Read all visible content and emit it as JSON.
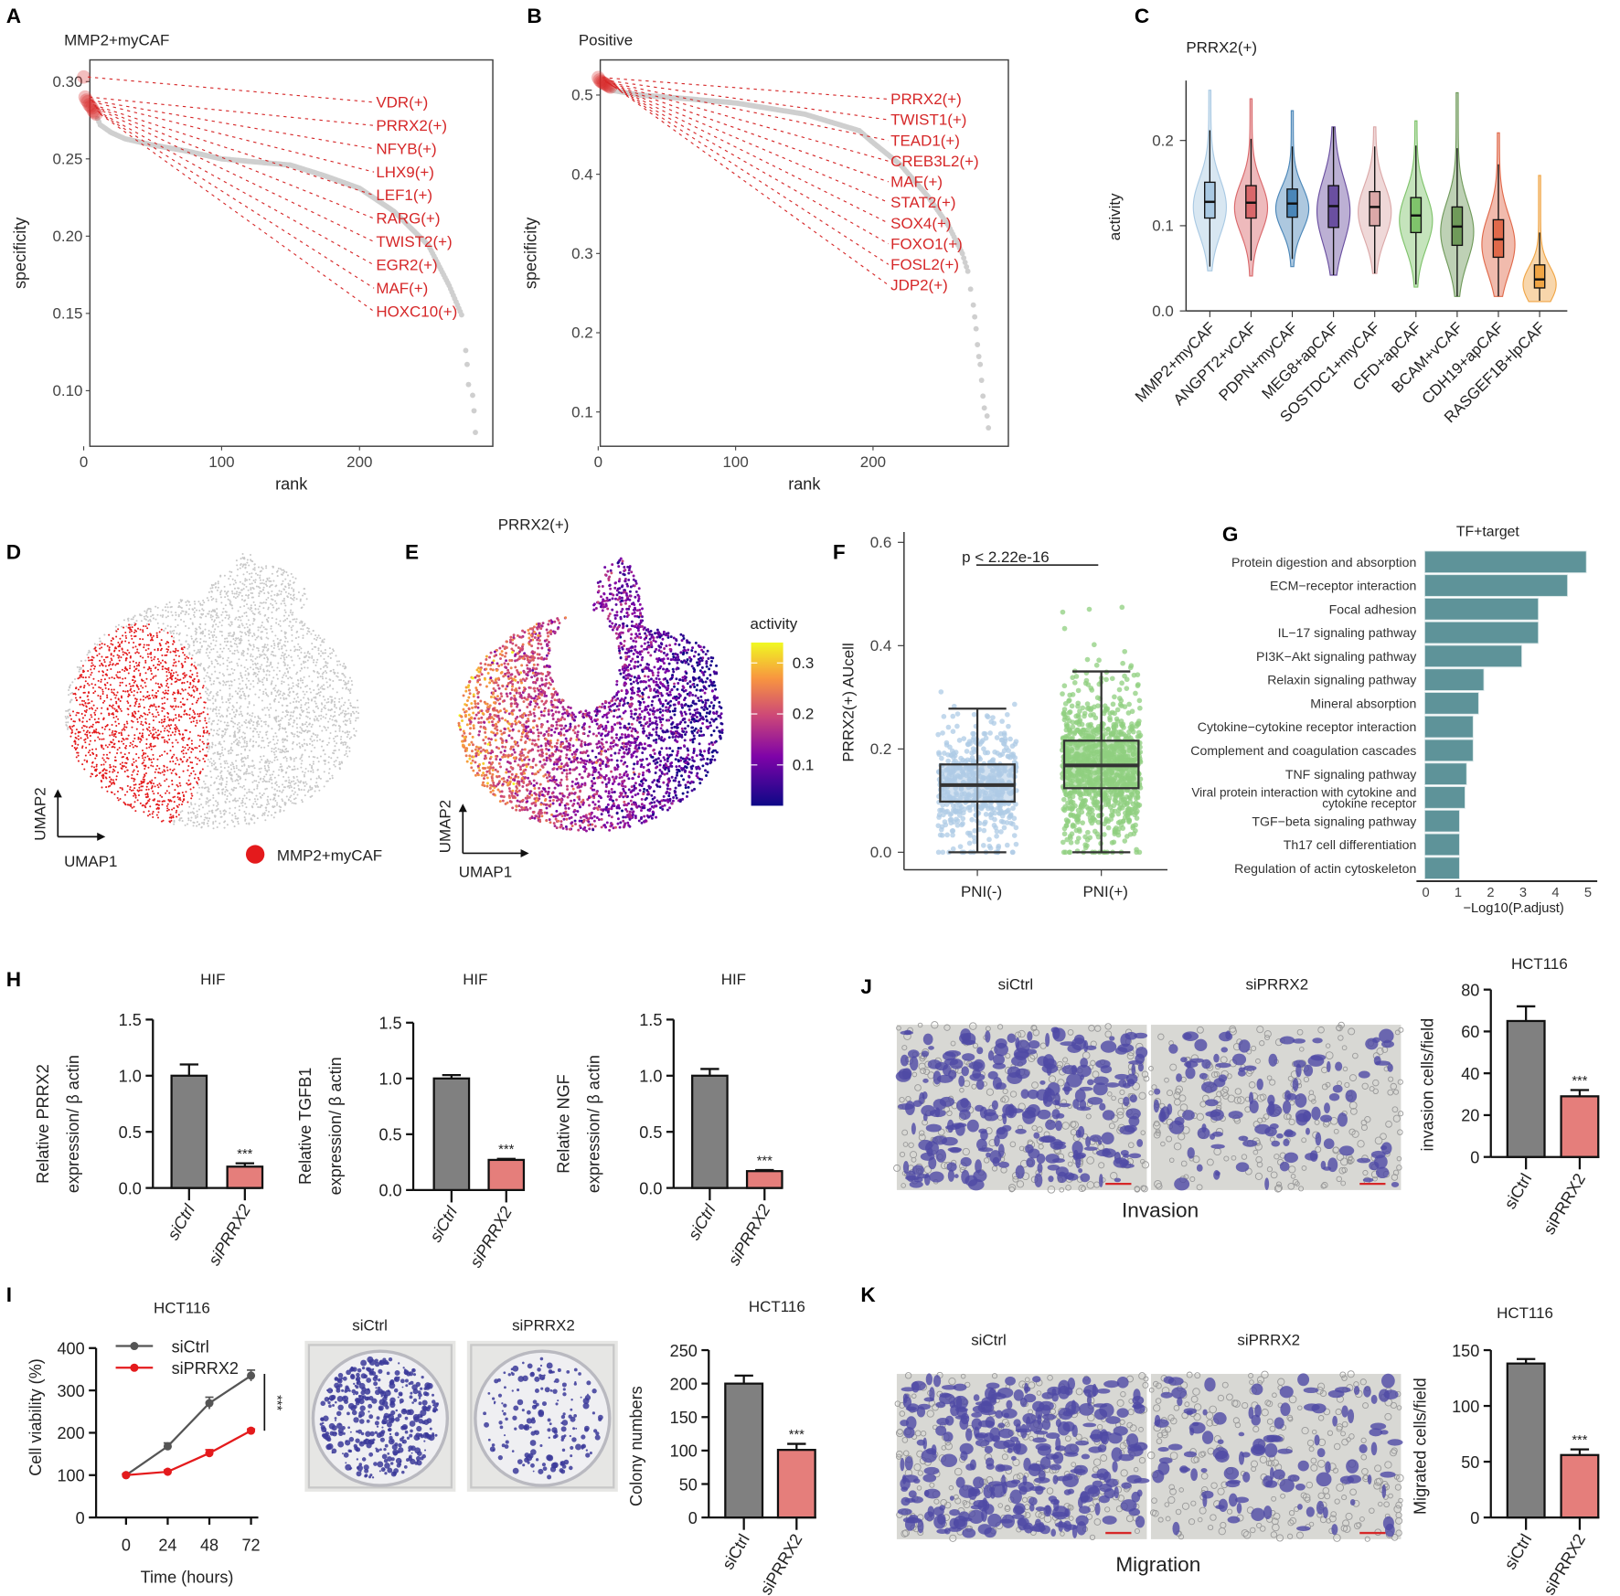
{
  "chart_data": [
    {
      "panel": "A",
      "type": "scatter",
      "title": "MMP2+myCAF",
      "xlabel": "rank",
      "ylabel": "specificity",
      "xticks": [
        "0",
        "100",
        "200"
      ],
      "yticks": [
        "0.10",
        "0.15",
        "0.20",
        "0.25",
        "0.30"
      ],
      "highlighted": [
        [
          0,
          0.303
        ],
        [
          1,
          0.29
        ],
        [
          2,
          0.288
        ],
        [
          3,
          0.287
        ],
        [
          4,
          0.285
        ],
        [
          5,
          0.284
        ],
        [
          6,
          0.283
        ],
        [
          7,
          0.281
        ],
        [
          8,
          0.28
        ],
        [
          9,
          0.279
        ]
      ],
      "curve": [
        [
          10,
          0.276
        ],
        [
          12,
          0.272
        ],
        [
          20,
          0.267
        ],
        [
          30,
          0.263
        ],
        [
          50,
          0.259
        ],
        [
          75,
          0.255
        ],
        [
          100,
          0.25
        ],
        [
          125,
          0.248
        ],
        [
          150,
          0.246
        ],
        [
          175,
          0.239
        ],
        [
          200,
          0.231
        ],
        [
          225,
          0.216
        ],
        [
          250,
          0.194
        ],
        [
          265,
          0.168
        ],
        [
          275,
          0.147
        ]
      ],
      "tail": [
        [
          277,
          0.126
        ],
        [
          278,
          0.117
        ],
        [
          279,
          0.104
        ],
        [
          282,
          0.097
        ],
        [
          283,
          0.087
        ],
        [
          284,
          0.073
        ]
      ],
      "labels": [
        "VDR(+)",
        "PRRX2(+)",
        "NFYB(+)",
        "LHX9(+)",
        "LEF1(+)",
        "RARG(+)",
        "TWIST2(+)",
        "EGR2(+)",
        "MAF(+)",
        "HOXC10(+)"
      ]
    },
    {
      "panel": "B",
      "type": "scatter",
      "title": "Positive",
      "xlabel": "rank",
      "ylabel": "specificity",
      "xticks": [
        "0",
        "100",
        "200"
      ],
      "yticks": [
        "0.1",
        "0.2",
        "0.3",
        "0.4",
        "0.5"
      ],
      "highlighted": [
        [
          0,
          0.522
        ],
        [
          1,
          0.519
        ],
        [
          2,
          0.517
        ],
        [
          3,
          0.516
        ],
        [
          4,
          0.515
        ],
        [
          5,
          0.514
        ],
        [
          6,
          0.513
        ],
        [
          7,
          0.512
        ],
        [
          8,
          0.511
        ],
        [
          9,
          0.51
        ]
      ],
      "curve": [
        [
          10,
          0.506
        ],
        [
          30,
          0.5
        ],
        [
          60,
          0.496
        ],
        [
          100,
          0.49
        ],
        [
          150,
          0.476
        ],
        [
          190,
          0.455
        ],
        [
          200,
          0.44
        ],
        [
          220,
          0.412
        ],
        [
          240,
          0.372
        ],
        [
          255,
          0.335
        ],
        [
          265,
          0.3
        ],
        [
          270,
          0.272
        ]
      ],
      "tail": [
        [
          271,
          0.255
        ],
        [
          273,
          0.235
        ],
        [
          274,
          0.22
        ],
        [
          275,
          0.205
        ],
        [
          276,
          0.185
        ],
        [
          277,
          0.17
        ],
        [
          278,
          0.16
        ],
        [
          279,
          0.14
        ],
        [
          280,
          0.12
        ],
        [
          281,
          0.105
        ],
        [
          283,
          0.095
        ],
        [
          284,
          0.08
        ]
      ],
      "labels": [
        "PRRX2(+)",
        "TWIST1(+)",
        "TEAD1(+)",
        "CREB3L2(+)",
        "MAF(+)",
        "STAT2(+)",
        "SOX4(+)",
        "FOXO1(+)",
        "FOSL2(+)",
        "JDP2(+)"
      ]
    },
    {
      "panel": "C",
      "type": "violin",
      "title": "PRRX2(+)",
      "ylabel": "activity",
      "yticks": [
        "0.0",
        "0.1",
        "0.2"
      ],
      "categories": [
        "MMP2+myCAF",
        "ANGPT2+vCAF",
        "PDPN+myCAF",
        "MEG8+apCAF",
        "SOSTDC1+myCAF",
        "CFD+apCAF",
        "BCAM+vCAF",
        "CDH19+apCAF",
        "RASGEF1B+lpCAF"
      ],
      "colors": [
        "#a9c9e3",
        "#d9676a",
        "#4a86b8",
        "#6a4fa0",
        "#dba8a8",
        "#7fc36b",
        "#6f9a5a",
        "#e0694a",
        "#f0a545"
      ],
      "median": [
        0.128,
        0.127,
        0.126,
        0.123,
        0.122,
        0.112,
        0.099,
        0.084,
        0.037
      ],
      "q1": [
        0.109,
        0.109,
        0.11,
        0.098,
        0.1,
        0.092,
        0.077,
        0.063,
        0.027
      ],
      "q3": [
        0.151,
        0.147,
        0.143,
        0.147,
        0.14,
        0.133,
        0.122,
        0.107,
        0.054
      ],
      "whisker_low": [
        0.052,
        0.059,
        0.061,
        0.042,
        0.044,
        0.031,
        0.017,
        0.017,
        0.012
      ],
      "whisker_high": [
        0.212,
        0.202,
        0.193,
        0.216,
        0.193,
        0.194,
        0.191,
        0.172,
        0.092
      ],
      "min": [
        0.047,
        0.041,
        0.052,
        0.042,
        0.044,
        0.028,
        0.017,
        0.017,
        0.011
      ],
      "max": [
        0.259,
        0.249,
        0.235,
        0.216,
        0.216,
        0.223,
        0.256,
        0.209,
        0.159
      ]
    },
    {
      "panel": "D",
      "type": "scatter",
      "xlabel": "UMAP1",
      "ylabel": "UMAP2",
      "legend": "MMP2+myCAF",
      "highlight_color": "#e41a1c",
      "base_color": "#c8c8c8"
    },
    {
      "panel": "E",
      "type": "scatter",
      "title": "PRRX2(+)",
      "xlabel": "UMAP1",
      "ylabel": "UMAP2",
      "colorbar_title": "activity",
      "colorbar_ticks": [
        "0.1",
        "0.2",
        "0.3"
      ],
      "color_range": [
        0.02,
        0.34
      ]
    },
    {
      "panel": "F",
      "type": "box",
      "ylabel": "PRRX2(+) AUcell",
      "yticks": [
        "0.0",
        "0.2",
        "0.4",
        "0.6"
      ],
      "categories": [
        "PNI(-)",
        "PNI(+)"
      ],
      "colors": [
        "#aecbe6",
        "#8fcf7f"
      ],
      "median": [
        0.13,
        0.168
      ],
      "q1": [
        0.098,
        0.124
      ],
      "q3": [
        0.17,
        0.216
      ],
      "whisker_low": [
        0.0,
        0.0
      ],
      "whisker_high": [
        0.278,
        0.35
      ],
      "max": [
        0.42,
        0.53
      ],
      "annotation": "p < 2.22e-16"
    },
    {
      "panel": "G",
      "type": "bar",
      "orientation": "horizontal",
      "title": "TF+target",
      "xlabel": "−Log10(P.adjust)",
      "xticks": [
        "0",
        "1",
        "2",
        "3",
        "4",
        "5"
      ],
      "color": "#5e9399",
      "categories": [
        "Protein digestion and absorption",
        "ECM−receptor interaction",
        "Focal adhesion",
        "IL−17 signaling pathway",
        "PI3K−Akt signaling pathway",
        "Relaxin signaling pathway",
        "Mineral absorption",
        "Cytokine−cytokine receptor interaction",
        "Complement and coagulation cascades",
        "TNF signaling pathway",
        [
          "Viral protein interaction with cytokine and",
          "cytokine receptor"
        ],
        "TGF−beta signaling pathway",
        "Th17 cell differentiation",
        "Regulation of actin cytoskeleton"
      ],
      "values": [
        4.95,
        4.37,
        3.47,
        3.47,
        2.96,
        1.79,
        1.63,
        1.46,
        1.46,
        1.26,
        1.21,
        1.04,
        1.04,
        1.04
      ]
    },
    {
      "panel": "H",
      "type": "bar",
      "title": "HIF",
      "ylabel": [
        "Relative PRRX2",
        "expression/ β  actin"
      ],
      "yticks": [
        "0.0",
        "0.5",
        "1.0",
        "1.5"
      ],
      "categories": [
        "siCtrl",
        "siPRRX2"
      ],
      "values": [
        1.0,
        0.19
      ],
      "error_upper": [
        1.1,
        0.22
      ],
      "significance": "***",
      "colors": [
        "#808080",
        "#e57e7b"
      ]
    },
    {
      "type": "bar",
      "title": "HIF",
      "ylabel": [
        "Relative TGFB1",
        "expression/ β  actin"
      ],
      "yticks": [
        "0.0",
        "0.5",
        "1.0",
        "1.5"
      ],
      "categories": [
        "siCtrl",
        "siPRRX2"
      ],
      "values": [
        1.0,
        0.27
      ],
      "error_upper": [
        1.03,
        0.28
      ],
      "significance": "***",
      "colors": [
        "#808080",
        "#e57e7b"
      ]
    },
    {
      "type": "bar",
      "title": "HIF",
      "ylabel": [
        "Relative NGF",
        "expression/ β  actin"
      ],
      "yticks": [
        "0.0",
        "0.5",
        "1.0",
        "1.5"
      ],
      "categories": [
        "siCtrl",
        "siPRRX2"
      ],
      "values": [
        1.0,
        0.15
      ],
      "error_upper": [
        1.06,
        0.16
      ],
      "significance": "***",
      "colors": [
        "#808080",
        "#e57e7b"
      ]
    },
    {
      "panel": "I",
      "type": "line",
      "title": "HCT116",
      "xlabel": "Time (hours)",
      "ylabel": "Cell viability (%)",
      "x": [
        0,
        24,
        48,
        72
      ],
      "xticks": [
        "0",
        "24",
        "48",
        "72"
      ],
      "yticks": [
        "0",
        "100",
        "200",
        "300",
        "400"
      ],
      "series": [
        {
          "name": "siCtrl",
          "values": [
            100,
            168,
            270,
            335
          ],
          "errors": [
            3,
            8,
            14,
            13
          ],
          "color": "#555555"
        },
        {
          "name": "siPRRX2",
          "values": [
            100,
            108,
            152,
            205
          ],
          "errors": [
            3,
            4,
            8,
            4
          ],
          "color": "#e41a1c"
        }
      ],
      "significance": "***"
    },
    {
      "type": "image",
      "labels": [
        "siCtrl",
        "siPRRX2"
      ],
      "colony_counts_relative": [
        1.0,
        0.5
      ]
    },
    {
      "type": "bar",
      "title": "HCT116",
      "ylabel": "Colony numbers",
      "yticks": [
        "0",
        "50",
        "100",
        "150",
        "200",
        "250"
      ],
      "categories": [
        "siCtrl",
        "siPRRX2"
      ],
      "values": [
        200,
        101
      ],
      "error_upper": [
        212,
        110
      ],
      "significance": "***",
      "colors": [
        "#808080",
        "#e57e7b"
      ]
    },
    {
      "panel": "J",
      "type": "image",
      "labels": [
        "siCtrl",
        "siPRRX2"
      ],
      "caption": "Invasion"
    },
    {
      "type": "bar",
      "title": "HCT116",
      "ylabel": "invasion cells/field",
      "yticks": [
        "0",
        "20",
        "40",
        "60",
        "80"
      ],
      "categories": [
        "siCtrl",
        "siPRRX2"
      ],
      "values": [
        65,
        29
      ],
      "error_upper": [
        72,
        32
      ],
      "significance": "***",
      "colors": [
        "#808080",
        "#e57e7b"
      ]
    },
    {
      "panel": "K",
      "type": "image",
      "labels": [
        "siCtrl",
        "siPRRX2"
      ],
      "caption": "Migration"
    },
    {
      "type": "bar",
      "title": "HCT116",
      "ylabel": "Migrated cells/field",
      "yticks": [
        "0",
        "50",
        "100",
        "150"
      ],
      "categories": [
        "siCtrl",
        "siPRRX2"
      ],
      "values": [
        138,
        56
      ],
      "error_upper": [
        142,
        61
      ],
      "significance": "***",
      "colors": [
        "#808080",
        "#e57e7b"
      ]
    }
  ]
}
